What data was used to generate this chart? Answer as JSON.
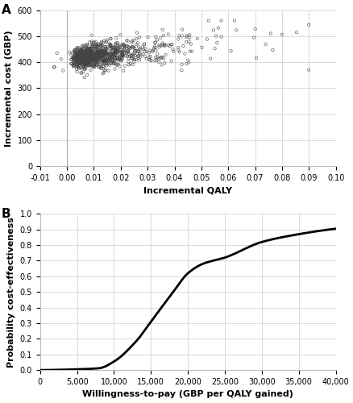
{
  "panel_A_label": "A",
  "panel_B_label": "B",
  "scatter_seed": 42,
  "scatter_n": 1000,
  "scatter_ylabel": "Incremental cost (GBP)",
  "scatter_xlabel": "Incremental QALY",
  "scatter_xlim": [
    -0.01,
    0.1
  ],
  "scatter_ylim": [
    0,
    600
  ],
  "scatter_xticks": [
    -0.01,
    0.0,
    0.01,
    0.02,
    0.03,
    0.04,
    0.05,
    0.06,
    0.07,
    0.08,
    0.09,
    0.1
  ],
  "scatter_yticks": [
    0,
    100,
    200,
    300,
    400,
    500,
    600
  ],
  "ceac_xlabel": "Willingness-to-pay (GBP per QALY gained)",
  "ceac_ylabel": "Probability cost-effectiveness",
  "ceac_xlim": [
    0,
    40000
  ],
  "ceac_ylim": [
    0.0,
    1.0
  ],
  "ceac_xticks": [
    0,
    5000,
    10000,
    15000,
    20000,
    25000,
    30000,
    35000,
    40000
  ],
  "ceac_yticks": [
    0.0,
    0.1,
    0.2,
    0.3,
    0.4,
    0.5,
    0.6,
    0.7,
    0.8,
    0.9,
    1.0
  ],
  "marker_facecolor": "none",
  "marker_edgecolor": "#444444",
  "marker_lw": 0.4,
  "marker_s": 6,
  "line_color": "#000000",
  "line_width": 2.0,
  "grid_color": "#cccccc",
  "vline_x": 0.0,
  "vline_color": "#aaaaaa",
  "bg_color": "#ffffff",
  "label_fontsize": 8,
  "tick_fontsize": 7,
  "panel_label_fontsize": 11
}
